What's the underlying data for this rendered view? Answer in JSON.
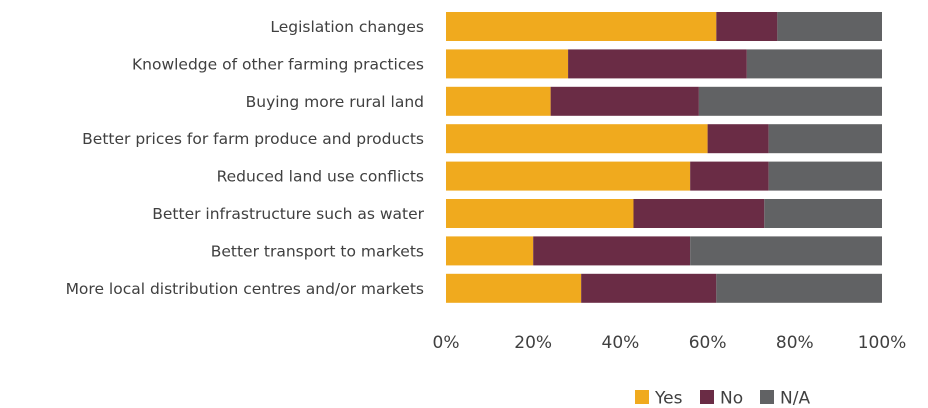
{
  "chart_data": {
    "type": "bar",
    "orientation": "horizontal",
    "stacked": "percent",
    "categories": [
      "Legislation changes",
      "Knowledge of other farming practices",
      "Buying more rural land",
      "Better prices for farm produce and products",
      "Reduced land use conflicts",
      "Better infrastructure such as water",
      "Better transport to markets",
      "More local distribution centres and/or markets"
    ],
    "series": [
      {
        "name": "Yes",
        "color": "#F0AA1E",
        "values": [
          62,
          28,
          24,
          60,
          56,
          43,
          20,
          31
        ]
      },
      {
        "name": "No",
        "color": "#6A2C45",
        "values": [
          14,
          41,
          34,
          14,
          18,
          30,
          36,
          31
        ]
      },
      {
        "name": "N/A",
        "color": "#616264",
        "values": [
          24,
          31,
          42,
          26,
          26,
          27,
          44,
          38
        ]
      }
    ],
    "x_ticks": [
      "0%",
      "20%",
      "40%",
      "60%",
      "80%",
      "100%"
    ],
    "xlim": [
      0,
      100
    ],
    "grid": false,
    "legend_position": "bottom-right"
  }
}
